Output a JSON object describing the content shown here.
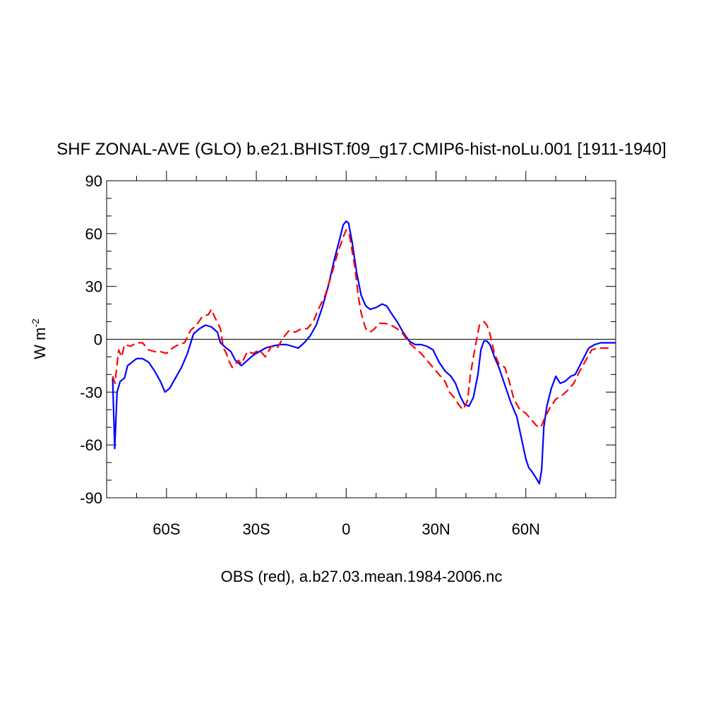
{
  "chart_data": {
    "type": "line",
    "title": "SHF ZONAL-AVE (GLO) b.e21.BHIST.f09_g17.CMIP6-hist-noLu.001 [1911-1940]",
    "xlabel": "OBS (red), a.b27.03.mean.1984-2006.nc",
    "ylabel": "W m",
    "ylabel_superscript": "-2",
    "xlim": [
      -80,
      90
    ],
    "ylim": [
      -90,
      90
    ],
    "x_ticks": [
      {
        "value": -60,
        "label": "60S"
      },
      {
        "value": -30,
        "label": "30S"
      },
      {
        "value": 0,
        "label": "0"
      },
      {
        "value": 30,
        "label": "30N"
      },
      {
        "value": 60,
        "label": "60N"
      }
    ],
    "y_ticks": [
      {
        "value": -90,
        "label": "-90"
      },
      {
        "value": -60,
        "label": "-60"
      },
      {
        "value": -30,
        "label": "-30"
      },
      {
        "value": 0,
        "label": "0"
      },
      {
        "value": 30,
        "label": "30"
      },
      {
        "value": 60,
        "label": "60"
      },
      {
        "value": 90,
        "label": "90"
      }
    ],
    "zero_line": true,
    "grid": false,
    "series": [
      {
        "color": "#0000ff",
        "dash": "solid",
        "points": [
          [
            -78,
            -22
          ],
          [
            -77.3,
            -62
          ],
          [
            -76.5,
            -30
          ],
          [
            -75.5,
            -24
          ],
          [
            -74,
            -22
          ],
          [
            -73,
            -15
          ],
          [
            -71.5,
            -13
          ],
          [
            -70,
            -11
          ],
          [
            -68,
            -11
          ],
          [
            -66,
            -13
          ],
          [
            -64,
            -18
          ],
          [
            -62,
            -24
          ],
          [
            -60.5,
            -30
          ],
          [
            -59,
            -28
          ],
          [
            -57,
            -22
          ],
          [
            -55,
            -16
          ],
          [
            -53,
            -8
          ],
          [
            -51,
            3
          ],
          [
            -49,
            6
          ],
          [
            -47,
            8
          ],
          [
            -45,
            7
          ],
          [
            -43,
            4
          ],
          [
            -42,
            -2
          ],
          [
            -40,
            -5
          ],
          [
            -38.5,
            -7
          ],
          [
            -37,
            -12
          ],
          [
            -35,
            -15
          ],
          [
            -33,
            -12
          ],
          [
            -31,
            -9
          ],
          [
            -29,
            -7
          ],
          [
            -27,
            -5
          ],
          [
            -25,
            -4
          ],
          [
            -22,
            -3
          ],
          [
            -20,
            -3
          ],
          [
            -18,
            -4
          ],
          [
            -16,
            -5
          ],
          [
            -14,
            -2
          ],
          [
            -12,
            2
          ],
          [
            -10,
            8
          ],
          [
            -8,
            18
          ],
          [
            -6,
            30
          ],
          [
            -4,
            45
          ],
          [
            -2,
            58
          ],
          [
            -1,
            65
          ],
          [
            0,
            67
          ],
          [
            0.8,
            66
          ],
          [
            2,
            55
          ],
          [
            3.5,
            38
          ],
          [
            5,
            25
          ],
          [
            6.5,
            19
          ],
          [
            8,
            17
          ],
          [
            10,
            18
          ],
          [
            12,
            20
          ],
          [
            13.5,
            19
          ],
          [
            15,
            15
          ],
          [
            17,
            10
          ],
          [
            19,
            4
          ],
          [
            21,
            -1
          ],
          [
            23,
            -3
          ],
          [
            25,
            -3
          ],
          [
            27,
            -4
          ],
          [
            29,
            -6
          ],
          [
            31,
            -13
          ],
          [
            33,
            -18
          ],
          [
            35,
            -21
          ],
          [
            36.5,
            -25
          ],
          [
            38,
            -32
          ],
          [
            39.5,
            -37
          ],
          [
            41,
            -38
          ],
          [
            42.5,
            -33
          ],
          [
            44,
            -20
          ],
          [
            45,
            -6
          ],
          [
            46,
            -1
          ],
          [
            47,
            -1
          ],
          [
            48,
            -3
          ],
          [
            49.5,
            -10
          ],
          [
            51,
            -16
          ],
          [
            53,
            -26
          ],
          [
            55,
            -36
          ],
          [
            57,
            -44
          ],
          [
            58.5,
            -56
          ],
          [
            60,
            -68
          ],
          [
            61,
            -73
          ],
          [
            62,
            -75
          ],
          [
            63.5,
            -79
          ],
          [
            64.5,
            -82
          ],
          [
            65.3,
            -74
          ],
          [
            66,
            -50
          ],
          [
            67,
            -38
          ],
          [
            68.5,
            -28
          ],
          [
            70,
            -21
          ],
          [
            71.5,
            -25
          ],
          [
            73,
            -24
          ],
          [
            75,
            -21
          ],
          [
            76.5,
            -20
          ],
          [
            78,
            -15
          ],
          [
            79.5,
            -10
          ],
          [
            81,
            -5
          ],
          [
            83,
            -3
          ],
          [
            85,
            -2
          ],
          [
            88,
            -2
          ],
          [
            90,
            -2
          ]
        ]
      },
      {
        "color": "#ff0000",
        "dash": "dashed",
        "points": [
          [
            -78,
            -21
          ],
          [
            -77.2,
            -25
          ],
          [
            -76,
            -6
          ],
          [
            -75,
            -10
          ],
          [
            -74,
            -3
          ],
          [
            -72,
            -4
          ],
          [
            -70,
            -2
          ],
          [
            -68,
            -2
          ],
          [
            -66,
            -6
          ],
          [
            -64,
            -7
          ],
          [
            -62,
            -7
          ],
          [
            -60,
            -8
          ],
          [
            -58,
            -5
          ],
          [
            -56,
            -3
          ],
          [
            -54,
            -2
          ],
          [
            -52,
            5
          ],
          [
            -50,
            8
          ],
          [
            -48,
            13
          ],
          [
            -46,
            14
          ],
          [
            -45,
            17
          ],
          [
            -44,
            13
          ],
          [
            -42,
            6
          ],
          [
            -41,
            -5
          ],
          [
            -40,
            -8
          ],
          [
            -39,
            -13
          ],
          [
            -38,
            -16
          ],
          [
            -36,
            -12
          ],
          [
            -35,
            -14
          ],
          [
            -33,
            -7
          ],
          [
            -31,
            -8
          ],
          [
            -29,
            -6
          ],
          [
            -27,
            -10
          ],
          [
            -25,
            -4
          ],
          [
            -23,
            -5
          ],
          [
            -21,
            1
          ],
          [
            -19,
            5
          ],
          [
            -17,
            4
          ],
          [
            -15,
            6
          ],
          [
            -13,
            6
          ],
          [
            -11,
            10
          ],
          [
            -9,
            18
          ],
          [
            -7,
            25
          ],
          [
            -5,
            36
          ],
          [
            -3,
            48
          ],
          [
            -1,
            58
          ],
          [
            0,
            62
          ],
          [
            1,
            60
          ],
          [
            2,
            50
          ],
          [
            3,
            40
          ],
          [
            4,
            25
          ],
          [
            5,
            15
          ],
          [
            6.5,
            6
          ],
          [
            8,
            4
          ],
          [
            9.5,
            6
          ],
          [
            11,
            9
          ],
          [
            13,
            9
          ],
          [
            15,
            8
          ],
          [
            17,
            6
          ],
          [
            19,
            3
          ],
          [
            21,
            -2
          ],
          [
            23,
            -5
          ],
          [
            25,
            -8
          ],
          [
            27,
            -12
          ],
          [
            29,
            -16
          ],
          [
            31,
            -20
          ],
          [
            33,
            -24
          ],
          [
            34.5,
            -30
          ],
          [
            36,
            -33
          ],
          [
            37.5,
            -37
          ],
          [
            39,
            -40
          ],
          [
            40.5,
            -35
          ],
          [
            41.5,
            -20
          ],
          [
            43,
            -5
          ],
          [
            44.5,
            8
          ],
          [
            46,
            10
          ],
          [
            47,
            8
          ],
          [
            48,
            3
          ],
          [
            49.5,
            -8
          ],
          [
            51,
            -14
          ],
          [
            53,
            -16
          ],
          [
            54.5,
            -24
          ],
          [
            56,
            -34
          ],
          [
            58,
            -40
          ],
          [
            60,
            -42
          ],
          [
            61,
            -44
          ],
          [
            62.5,
            -47
          ],
          [
            63.5,
            -49
          ],
          [
            65,
            -50
          ],
          [
            66.5,
            -44
          ],
          [
            68,
            -39
          ],
          [
            70,
            -34
          ],
          [
            72,
            -32
          ],
          [
            74,
            -29
          ],
          [
            76,
            -25
          ],
          [
            78,
            -18
          ],
          [
            80,
            -12
          ],
          [
            82,
            -6
          ],
          [
            84,
            -5
          ],
          [
            86,
            -5
          ],
          [
            88,
            -5
          ]
        ]
      }
    ]
  }
}
